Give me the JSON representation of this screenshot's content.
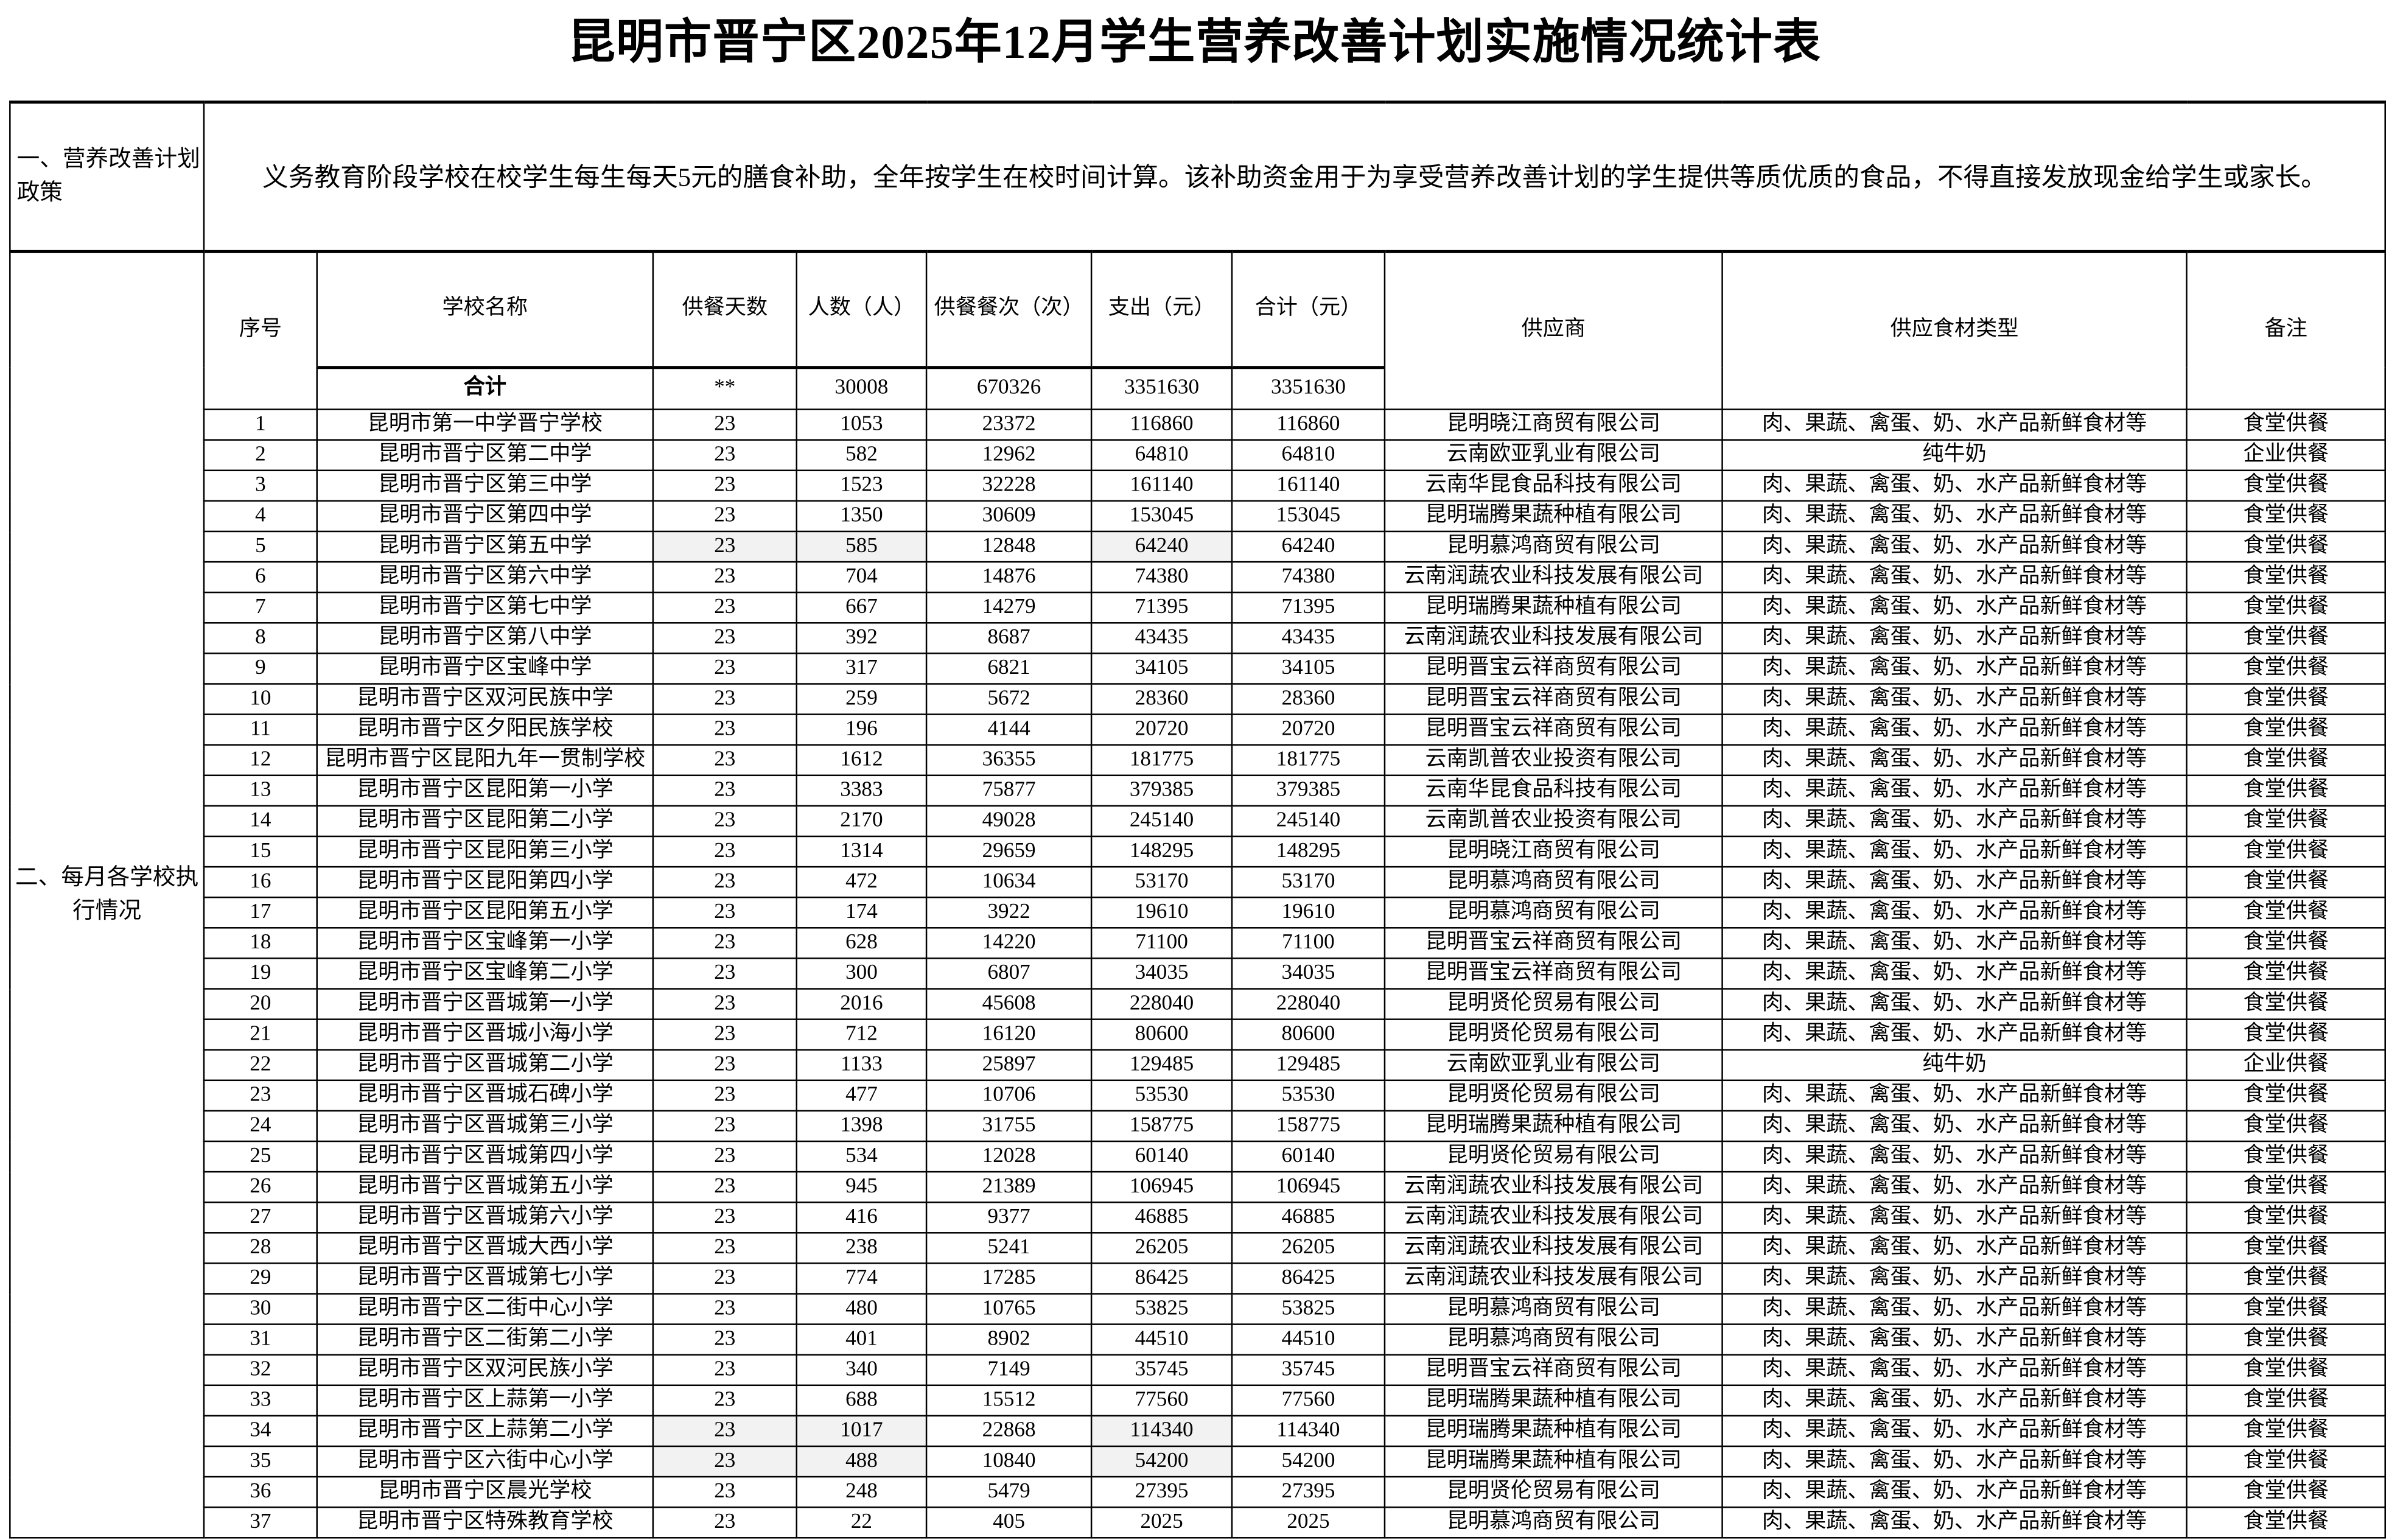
{
  "title": "昆明市晋宁区2025年12月学生营养改善计划实施情况统计表",
  "policy": {
    "label": "一、营养改善计划政策",
    "text": "义务教育阶段学校在校学生每生每天5元的膳食补助，全年按学生在校时间计算。该补助资金用于为享受营养改善计划的学生提供等质优质的食品，不得直接发放现金给学生或家长。"
  },
  "section2_label": "二、每月各学校执行情况",
  "headers": {
    "no": "序号",
    "school": "学校名称",
    "days": "供餐天数",
    "people": "人数（人）",
    "meals": "供餐餐次（次）",
    "expense": "支出（元）",
    "total": "合计（元）",
    "supplier": "供应商",
    "food": "供应食材类型",
    "remark": "备注"
  },
  "totals": {
    "label": "合计",
    "days": "**",
    "people": "30008",
    "meals": "670326",
    "expense": "3351630",
    "total": "3351630"
  },
  "rows": [
    [
      "1",
      "昆明市第一中学晋宁学校",
      "23",
      "1053",
      "23372",
      "116860",
      "116860",
      "昆明晓江商贸有限公司",
      "肉、果蔬、禽蛋、奶、水产品新鲜食材等",
      "食堂供餐"
    ],
    [
      "2",
      "昆明市晋宁区第二中学",
      "23",
      "582",
      "12962",
      "64810",
      "64810",
      "云南欧亚乳业有限公司",
      "纯牛奶",
      "企业供餐"
    ],
    [
      "3",
      "昆明市晋宁区第三中学",
      "23",
      "1523",
      "32228",
      "161140",
      "161140",
      "云南华昆食品科技有限公司",
      "肉、果蔬、禽蛋、奶、水产品新鲜食材等",
      "食堂供餐"
    ],
    [
      "4",
      "昆明市晋宁区第四中学",
      "23",
      "1350",
      "30609",
      "153045",
      "153045",
      "昆明瑞腾果蔬种植有限公司",
      "肉、果蔬、禽蛋、奶、水产品新鲜食材等",
      "食堂供餐"
    ],
    [
      "5",
      "昆明市晋宁区第五中学",
      "23",
      "585",
      "12848",
      "64240",
      "64240",
      "昆明慕鸿商贸有限公司",
      "肉、果蔬、禽蛋、奶、水产品新鲜食材等",
      "食堂供餐"
    ],
    [
      "6",
      "昆明市晋宁区第六中学",
      "23",
      "704",
      "14876",
      "74380",
      "74380",
      "云南润蔬农业科技发展有限公司",
      "肉、果蔬、禽蛋、奶、水产品新鲜食材等",
      "食堂供餐"
    ],
    [
      "7",
      "昆明市晋宁区第七中学",
      "23",
      "667",
      "14279",
      "71395",
      "71395",
      "昆明瑞腾果蔬种植有限公司",
      "肉、果蔬、禽蛋、奶、水产品新鲜食材等",
      "食堂供餐"
    ],
    [
      "8",
      "昆明市晋宁区第八中学",
      "23",
      "392",
      "8687",
      "43435",
      "43435",
      "云南润蔬农业科技发展有限公司",
      "肉、果蔬、禽蛋、奶、水产品新鲜食材等",
      "食堂供餐"
    ],
    [
      "9",
      "昆明市晋宁区宝峰中学",
      "23",
      "317",
      "6821",
      "34105",
      "34105",
      "昆明晋宝云祥商贸有限公司",
      "肉、果蔬、禽蛋、奶、水产品新鲜食材等",
      "食堂供餐"
    ],
    [
      "10",
      "昆明市晋宁区双河民族中学",
      "23",
      "259",
      "5672",
      "28360",
      "28360",
      "昆明晋宝云祥商贸有限公司",
      "肉、果蔬、禽蛋、奶、水产品新鲜食材等",
      "食堂供餐"
    ],
    [
      "11",
      "昆明市晋宁区夕阳民族学校",
      "23",
      "196",
      "4144",
      "20720",
      "20720",
      "昆明晋宝云祥商贸有限公司",
      "肉、果蔬、禽蛋、奶、水产品新鲜食材等",
      "食堂供餐"
    ],
    [
      "12",
      "昆明市晋宁区昆阳九年一贯制学校",
      "23",
      "1612",
      "36355",
      "181775",
      "181775",
      "云南凯普农业投资有限公司",
      "肉、果蔬、禽蛋、奶、水产品新鲜食材等",
      "食堂供餐"
    ],
    [
      "13",
      "昆明市晋宁区昆阳第一小学",
      "23",
      "3383",
      "75877",
      "379385",
      "379385",
      "云南华昆食品科技有限公司",
      "肉、果蔬、禽蛋、奶、水产品新鲜食材等",
      "食堂供餐"
    ],
    [
      "14",
      "昆明市晋宁区昆阳第二小学",
      "23",
      "2170",
      "49028",
      "245140",
      "245140",
      "云南凯普农业投资有限公司",
      "肉、果蔬、禽蛋、奶、水产品新鲜食材等",
      "食堂供餐"
    ],
    [
      "15",
      "昆明市晋宁区昆阳第三小学",
      "23",
      "1314",
      "29659",
      "148295",
      "148295",
      "昆明晓江商贸有限公司",
      "肉、果蔬、禽蛋、奶、水产品新鲜食材等",
      "食堂供餐"
    ],
    [
      "16",
      "昆明市晋宁区昆阳第四小学",
      "23",
      "472",
      "10634",
      "53170",
      "53170",
      "昆明慕鸿商贸有限公司",
      "肉、果蔬、禽蛋、奶、水产品新鲜食材等",
      "食堂供餐"
    ],
    [
      "17",
      "昆明市晋宁区昆阳第五小学",
      "23",
      "174",
      "3922",
      "19610",
      "19610",
      "昆明慕鸿商贸有限公司",
      "肉、果蔬、禽蛋、奶、水产品新鲜食材等",
      "食堂供餐"
    ],
    [
      "18",
      "昆明市晋宁区宝峰第一小学",
      "23",
      "628",
      "14220",
      "71100",
      "71100",
      "昆明晋宝云祥商贸有限公司",
      "肉、果蔬、禽蛋、奶、水产品新鲜食材等",
      "食堂供餐"
    ],
    [
      "19",
      "昆明市晋宁区宝峰第二小学",
      "23",
      "300",
      "6807",
      "34035",
      "34035",
      "昆明晋宝云祥商贸有限公司",
      "肉、果蔬、禽蛋、奶、水产品新鲜食材等",
      "食堂供餐"
    ],
    [
      "20",
      "昆明市晋宁区晋城第一小学",
      "23",
      "2016",
      "45608",
      "228040",
      "228040",
      "昆明贤伦贸易有限公司",
      "肉、果蔬、禽蛋、奶、水产品新鲜食材等",
      "食堂供餐"
    ],
    [
      "21",
      "昆明市晋宁区晋城小海小学",
      "23",
      "712",
      "16120",
      "80600",
      "80600",
      "昆明贤伦贸易有限公司",
      "肉、果蔬、禽蛋、奶、水产品新鲜食材等",
      "食堂供餐"
    ],
    [
      "22",
      "昆明市晋宁区晋城第二小学",
      "23",
      "1133",
      "25897",
      "129485",
      "129485",
      "云南欧亚乳业有限公司",
      "纯牛奶",
      "企业供餐"
    ],
    [
      "23",
      "昆明市晋宁区晋城石碑小学",
      "23",
      "477",
      "10706",
      "53530",
      "53530",
      "昆明贤伦贸易有限公司",
      "肉、果蔬、禽蛋、奶、水产品新鲜食材等",
      "食堂供餐"
    ],
    [
      "24",
      "昆明市晋宁区晋城第三小学",
      "23",
      "1398",
      "31755",
      "158775",
      "158775",
      "昆明瑞腾果蔬种植有限公司",
      "肉、果蔬、禽蛋、奶、水产品新鲜食材等",
      "食堂供餐"
    ],
    [
      "25",
      "昆明市晋宁区晋城第四小学",
      "23",
      "534",
      "12028",
      "60140",
      "60140",
      "昆明贤伦贸易有限公司",
      "肉、果蔬、禽蛋、奶、水产品新鲜食材等",
      "食堂供餐"
    ],
    [
      "26",
      "昆明市晋宁区晋城第五小学",
      "23",
      "945",
      "21389",
      "106945",
      "106945",
      "云南润蔬农业科技发展有限公司",
      "肉、果蔬、禽蛋、奶、水产品新鲜食材等",
      "食堂供餐"
    ],
    [
      "27",
      "昆明市晋宁区晋城第六小学",
      "23",
      "416",
      "9377",
      "46885",
      "46885",
      "云南润蔬农业科技发展有限公司",
      "肉、果蔬、禽蛋、奶、水产品新鲜食材等",
      "食堂供餐"
    ],
    [
      "28",
      "昆明市晋宁区晋城大西小学",
      "23",
      "238",
      "5241",
      "26205",
      "26205",
      "云南润蔬农业科技发展有限公司",
      "肉、果蔬、禽蛋、奶、水产品新鲜食材等",
      "食堂供餐"
    ],
    [
      "29",
      "昆明市晋宁区晋城第七小学",
      "23",
      "774",
      "17285",
      "86425",
      "86425",
      "云南润蔬农业科技发展有限公司",
      "肉、果蔬、禽蛋、奶、水产品新鲜食材等",
      "食堂供餐"
    ],
    [
      "30",
      "昆明市晋宁区二街中心小学",
      "23",
      "480",
      "10765",
      "53825",
      "53825",
      "昆明慕鸿商贸有限公司",
      "肉、果蔬、禽蛋、奶、水产品新鲜食材等",
      "食堂供餐"
    ],
    [
      "31",
      "昆明市晋宁区二街第二小学",
      "23",
      "401",
      "8902",
      "44510",
      "44510",
      "昆明慕鸿商贸有限公司",
      "肉、果蔬、禽蛋、奶、水产品新鲜食材等",
      "食堂供餐"
    ],
    [
      "32",
      "昆明市晋宁区双河民族小学",
      "23",
      "340",
      "7149",
      "35745",
      "35745",
      "昆明晋宝云祥商贸有限公司",
      "肉、果蔬、禽蛋、奶、水产品新鲜食材等",
      "食堂供餐"
    ],
    [
      "33",
      "昆明市晋宁区上蒜第一小学",
      "23",
      "688",
      "15512",
      "77560",
      "77560",
      "昆明瑞腾果蔬种植有限公司",
      "肉、果蔬、禽蛋、奶、水产品新鲜食材等",
      "食堂供餐"
    ],
    [
      "34",
      "昆明市晋宁区上蒜第二小学",
      "23",
      "1017",
      "22868",
      "114340",
      "114340",
      "昆明瑞腾果蔬种植有限公司",
      "肉、果蔬、禽蛋、奶、水产品新鲜食材等",
      "食堂供餐"
    ],
    [
      "35",
      "昆明市晋宁区六街中心小学",
      "23",
      "488",
      "10840",
      "54200",
      "54200",
      "昆明瑞腾果蔬种植有限公司",
      "肉、果蔬、禽蛋、奶、水产品新鲜食材等",
      "食堂供餐"
    ],
    [
      "36",
      "昆明市晋宁区晨光学校",
      "23",
      "248",
      "5479",
      "27395",
      "27395",
      "昆明贤伦贸易有限公司",
      "肉、果蔬、禽蛋、奶、水产品新鲜食材等",
      "食堂供餐"
    ],
    [
      "37",
      "昆明市晋宁区特殊教育学校",
      "23",
      "22",
      "405",
      "2025",
      "2025",
      "昆明慕鸿商贸有限公司",
      "肉、果蔬、禽蛋、奶、水产品新鲜食材等",
      "食堂供餐"
    ]
  ]
}
